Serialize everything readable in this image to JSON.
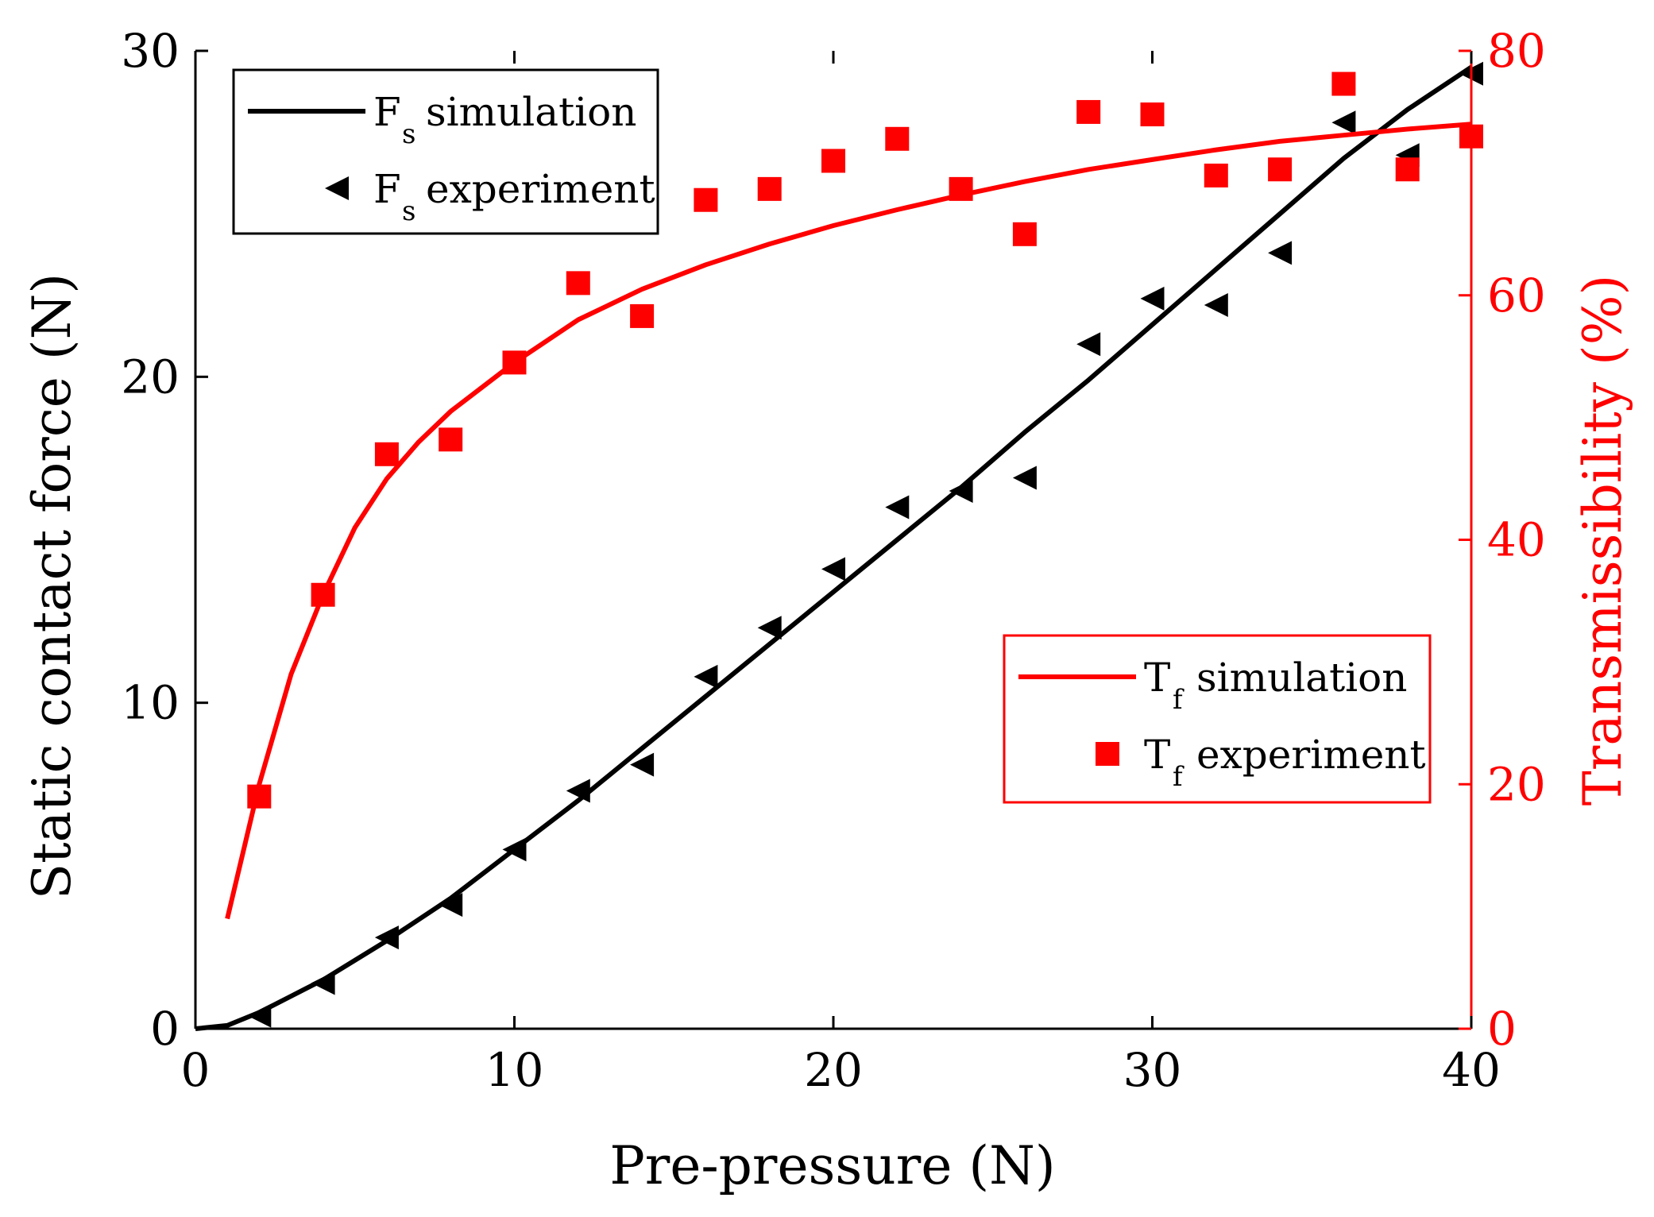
{
  "colors": {
    "black": "#000000",
    "red": "#ff0000",
    "background": "#ffffff"
  },
  "chart_data": {
    "type": "line",
    "xlabel": "Pre-pressure (N)",
    "ylabel_left": "Static contact force (N)",
    "ylabel_right": "Transmissibility (%)",
    "xlim": [
      0,
      40
    ],
    "ylim_left": [
      0,
      30
    ],
    "ylim_right": [
      0,
      80
    ],
    "xticks": [
      0,
      10,
      20,
      30,
      40
    ],
    "yticks_left": [
      0,
      10,
      20,
      30
    ],
    "yticks_right": [
      0,
      20,
      40,
      60,
      80
    ],
    "grid": false,
    "series": [
      {
        "name": "Fs simulation",
        "kind": "line",
        "axis": "left",
        "color": "#000000",
        "x": [
          0,
          1,
          2,
          3,
          4,
          5,
          6,
          8,
          10,
          12,
          14,
          16,
          18,
          20,
          22,
          24,
          26,
          28,
          30,
          32,
          34,
          36,
          38,
          40
        ],
        "y": [
          0,
          0.1,
          0.5,
          1.0,
          1.5,
          2.1,
          2.7,
          4.0,
          5.5,
          7.0,
          8.6,
          10.2,
          11.8,
          13.4,
          15.0,
          16.6,
          18.3,
          19.9,
          21.6,
          23.3,
          25.0,
          26.7,
          28.2,
          29.5
        ]
      },
      {
        "name": "Fs experiment",
        "kind": "marker",
        "marker": "triangle-left",
        "axis": "left",
        "color": "#000000",
        "x": [
          2,
          4,
          6,
          8,
          10,
          12,
          14,
          16,
          18,
          20,
          22,
          24,
          26,
          28,
          30,
          32,
          34,
          36,
          38,
          40
        ],
        "y": [
          0.4,
          1.4,
          2.8,
          3.8,
          5.5,
          7.3,
          8.1,
          10.8,
          12.3,
          14.1,
          16.0,
          16.5,
          16.9,
          21.0,
          22.4,
          22.2,
          23.8,
          27.8,
          26.8,
          29.3
        ]
      },
      {
        "name": "Tf simulation",
        "kind": "line",
        "axis": "right",
        "color": "#ff0000",
        "x": [
          1,
          2,
          3,
          4,
          5,
          6,
          7,
          8,
          10,
          12,
          14,
          16,
          18,
          20,
          22,
          24,
          26,
          28,
          30,
          32,
          34,
          36,
          38,
          40
        ],
        "y": [
          9.0,
          20.0,
          29.0,
          35.5,
          41.0,
          45.0,
          48.0,
          50.5,
          54.5,
          58.0,
          60.5,
          62.5,
          64.2,
          65.7,
          67.0,
          68.2,
          69.3,
          70.3,
          71.1,
          71.9,
          72.6,
          73.1,
          73.6,
          74.0
        ]
      },
      {
        "name": "Tf experiment",
        "kind": "marker",
        "marker": "square",
        "axis": "right",
        "color": "#ff0000",
        "x": [
          2,
          4,
          6,
          8,
          10,
          12,
          14,
          16,
          18,
          20,
          22,
          24,
          26,
          28,
          30,
          32,
          34,
          36,
          38,
          40
        ],
        "y": [
          19.0,
          35.5,
          47.0,
          48.2,
          54.5,
          61.0,
          58.3,
          67.8,
          68.7,
          71.0,
          72.8,
          68.7,
          65.0,
          75.0,
          74.8,
          69.8,
          70.3,
          77.3,
          70.3,
          73.0
        ]
      }
    ],
    "legends": [
      {
        "position": "top-left",
        "border_color": "#000000",
        "entries": [
          {
            "series": "Fs simulation",
            "base": "F",
            "sub": "s",
            "label": "simulation"
          },
          {
            "series": "Fs experiment",
            "base": "F",
            "sub": "s",
            "label": "experiment"
          }
        ]
      },
      {
        "position": "bottom-right",
        "border_color": "#ff0000",
        "entries": [
          {
            "series": "Tf simulation",
            "base": "T",
            "sub": "f",
            "label": "simulation"
          },
          {
            "series": "Tf experiment",
            "base": "T",
            "sub": "f",
            "label": "experiment"
          }
        ]
      }
    ]
  }
}
